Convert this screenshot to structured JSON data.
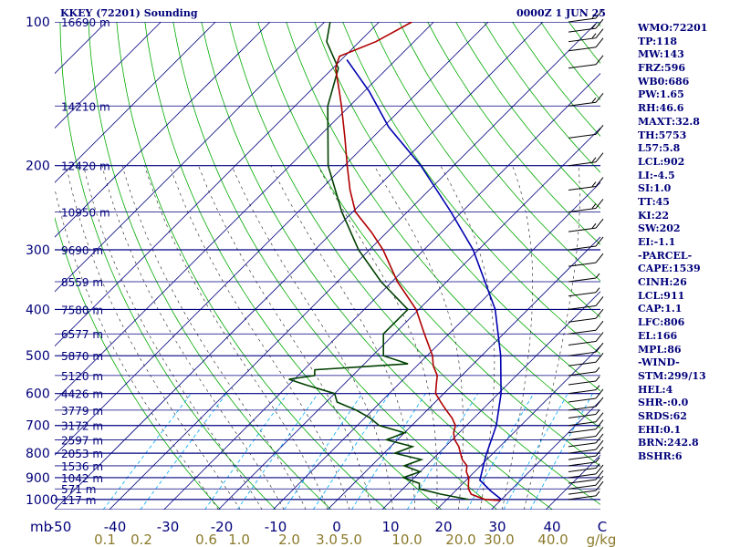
{
  "header": {
    "title": "KKEY (72201) Sounding",
    "valid_time": "0000Z  1 JUN 25"
  },
  "indices": [
    "WMO:72201",
    "TP:118",
    "MW:143",
    "FRZ:596",
    "WB0:686",
    "PW:1.65",
    "RH:46.6",
    "MAXT:32.8",
    "TH:5753",
    "L57:5.8",
    "LCL:902",
    "LI:-4.5",
    "SI:1.0",
    "TT:45",
    "KI:22",
    "SW:202",
    "EI:-1.1",
    "-PARCEL-",
    "CAPE:1539",
    "CINH:26",
    "LCL:911",
    "CAP:1.1",
    "LFC:806",
    "EL:166",
    "MPL:86",
    "-WIND-",
    "STM:299/13",
    "HEL:4",
    "SHR-:0.0",
    "SRDS:62",
    "EHI:0.1",
    "BRN:242.8",
    "BSHR:6"
  ],
  "colors": {
    "isobar": "#000080",
    "isotherm": "#000080",
    "dry_adiabat": "#00aa00",
    "moist_adiabat": "#1a1a1a",
    "mixing_ratio": "#00aaff",
    "temperature": "#b00000",
    "dewpoint": "#004000",
    "parcel": "#0000b0",
    "label": "#00007a",
    "mixing_label": "#8b7a2b"
  },
  "chart_data": {
    "type": "skew-t",
    "title": "KKEY (72201) Sounding",
    "pressure_levels": [
      100,
      200,
      300,
      400,
      500,
      600,
      700,
      800,
      900,
      1000
    ],
    "pressure_unit": "mb",
    "temperature_ticks": [
      -50,
      -40,
      -30,
      -20,
      -10,
      0,
      10,
      20,
      30,
      40
    ],
    "temperature_tick_labels": [
      "-50",
      "-40",
      "-30",
      "-20",
      "-10",
      "0",
      "10",
      "20",
      "30",
      "40",
      "C"
    ],
    "mixing_ratio_labels": [
      "0.1",
      "0.2",
      "0.6",
      "1.0",
      "2.0",
      "3.0",
      "5.0",
      "10.0",
      "20.0",
      "30.0",
      "40.0",
      "g/kg"
    ],
    "height_labels": [
      {
        "p": 100,
        "label": "16690 m"
      },
      {
        "p": 150,
        "label": "14210 m"
      },
      {
        "p": 200,
        "label": "12420 m"
      },
      {
        "p": 250,
        "label": "10950 m"
      },
      {
        "p": 300,
        "label": "9690 m"
      },
      {
        "p": 350,
        "label": "8559 m"
      },
      {
        "p": 400,
        "label": "7580 m"
      },
      {
        "p": 450,
        "label": "6577 m"
      },
      {
        "p": 500,
        "label": "5870 m"
      },
      {
        "p": 550,
        "label": "5120 m"
      },
      {
        "p": 600,
        "label": "4426 m"
      },
      {
        "p": 650,
        "label": "3779 m"
      },
      {
        "p": 700,
        "label": "3172 m"
      },
      {
        "p": 750,
        "label": "2597 m"
      },
      {
        "p": 800,
        "label": "2053 m"
      },
      {
        "p": 850,
        "label": "1536 m"
      },
      {
        "p": 900,
        "label": "1042 m"
      },
      {
        "p": 950,
        "label": "571 m"
      },
      {
        "p": 1000,
        "label": "117 m"
      }
    ],
    "temperature": [
      {
        "p": 1005,
        "t": 30
      },
      {
        "p": 1000,
        "t": 27
      },
      {
        "p": 975,
        "t": 23.5
      },
      {
        "p": 950,
        "t": 22
      },
      {
        "p": 925,
        "t": 21
      },
      {
        "p": 900,
        "t": 20
      },
      {
        "p": 875,
        "t": 18.5
      },
      {
        "p": 850,
        "t": 17.5
      },
      {
        "p": 825,
        "t": 15.5
      },
      {
        "p": 800,
        "t": 14
      },
      {
        "p": 775,
        "t": 12.5
      },
      {
        "p": 750,
        "t": 10.5
      },
      {
        "p": 725,
        "t": 9
      },
      {
        "p": 700,
        "t": 8
      },
      {
        "p": 675,
        "t": 6
      },
      {
        "p": 650,
        "t": 3.5
      },
      {
        "p": 625,
        "t": 1
      },
      {
        "p": 600,
        "t": -1.5
      },
      {
        "p": 575,
        "t": -3
      },
      {
        "p": 550,
        "t": -4.5
      },
      {
        "p": 525,
        "t": -7
      },
      {
        "p": 500,
        "t": -9
      },
      {
        "p": 450,
        "t": -14.5
      },
      {
        "p": 400,
        "t": -20.5
      },
      {
        "p": 350,
        "t": -29
      },
      {
        "p": 300,
        "t": -37.5
      },
      {
        "p": 275,
        "t": -43
      },
      {
        "p": 250,
        "t": -49.5
      },
      {
        "p": 225,
        "t": -54.5
      },
      {
        "p": 200,
        "t": -59.5
      },
      {
        "p": 175,
        "t": -65
      },
      {
        "p": 150,
        "t": -71.5
      },
      {
        "p": 140,
        "t": -74.5
      },
      {
        "p": 125,
        "t": -79.5
      },
      {
        "p": 118,
        "t": -81
      },
      {
        "p": 110,
        "t": -77
      },
      {
        "p": 100,
        "t": -74
      }
    ],
    "dewpoint": [
      {
        "p": 1000,
        "t": 24
      },
      {
        "p": 975,
        "t": 18
      },
      {
        "p": 950,
        "t": 13
      },
      {
        "p": 925,
        "t": 12
      },
      {
        "p": 900,
        "t": 8
      },
      {
        "p": 875,
        "t": 10
      },
      {
        "p": 850,
        "t": 6
      },
      {
        "p": 825,
        "t": 8
      },
      {
        "p": 800,
        "t": 2
      },
      {
        "p": 775,
        "t": 4
      },
      {
        "p": 750,
        "t": -2
      },
      {
        "p": 725,
        "t": 0
      },
      {
        "p": 700,
        "t": -6
      },
      {
        "p": 675,
        "t": -9
      },
      {
        "p": 650,
        "t": -13
      },
      {
        "p": 625,
        "t": -18
      },
      {
        "p": 600,
        "t": -20
      },
      {
        "p": 575,
        "t": -27
      },
      {
        "p": 560,
        "t": -31
      },
      {
        "p": 550,
        "t": -27
      },
      {
        "p": 535,
        "t": -28
      },
      {
        "p": 520,
        "t": -12
      },
      {
        "p": 500,
        "t": -18
      },
      {
        "p": 450,
        "t": -22
      },
      {
        "p": 400,
        "t": -22
      },
      {
        "p": 350,
        "t": -32
      },
      {
        "p": 300,
        "t": -42
      },
      {
        "p": 250,
        "t": -52
      },
      {
        "p": 200,
        "t": -63
      },
      {
        "p": 150,
        "t": -74
      },
      {
        "p": 125,
        "t": -79
      },
      {
        "p": 110,
        "t": -86
      },
      {
        "p": 100,
        "t": -89
      }
    ],
    "parcel": [
      {
        "p": 1000,
        "t": 30
      },
      {
        "p": 960,
        "t": 26.5
      },
      {
        "p": 911,
        "t": 22.5
      },
      {
        "p": 850,
        "t": 20.5
      },
      {
        "p": 806,
        "t": 19
      },
      {
        "p": 700,
        "t": 15.5
      },
      {
        "p": 600,
        "t": 10.5
      },
      {
        "p": 500,
        "t": 3.5
      },
      {
        "p": 400,
        "t": -6
      },
      {
        "p": 300,
        "t": -21
      },
      {
        "p": 250,
        "t": -32
      },
      {
        "p": 200,
        "t": -46
      },
      {
        "p": 166,
        "t": -59
      },
      {
        "p": 140,
        "t": -69
      },
      {
        "p": 120,
        "t": -79
      }
    ],
    "wind_barbs": [
      {
        "p": 1000,
        "spd": 5
      },
      {
        "p": 975,
        "spd": 10
      },
      {
        "p": 950,
        "spd": 10
      },
      {
        "p": 925,
        "spd": 10
      },
      {
        "p": 900,
        "spd": 10
      },
      {
        "p": 875,
        "spd": 5
      },
      {
        "p": 850,
        "spd": 5
      },
      {
        "p": 825,
        "spd": 10
      },
      {
        "p": 800,
        "spd": 10
      },
      {
        "p": 775,
        "spd": 10
      },
      {
        "p": 750,
        "spd": 10
      },
      {
        "p": 725,
        "spd": 10
      },
      {
        "p": 700,
        "spd": 10
      },
      {
        "p": 675,
        "spd": 5
      },
      {
        "p": 650,
        "spd": 10
      },
      {
        "p": 625,
        "spd": 10
      },
      {
        "p": 600,
        "spd": 5
      },
      {
        "p": 575,
        "spd": 5
      },
      {
        "p": 550,
        "spd": 5
      },
      {
        "p": 525,
        "spd": 10
      },
      {
        "p": 500,
        "spd": 10
      },
      {
        "p": 475,
        "spd": 10
      },
      {
        "p": 450,
        "spd": 10
      },
      {
        "p": 425,
        "spd": 10
      },
      {
        "p": 400,
        "spd": 10
      },
      {
        "p": 375,
        "spd": 5
      },
      {
        "p": 350,
        "spd": 5
      },
      {
        "p": 325,
        "spd": 10
      },
      {
        "p": 300,
        "spd": 10
      },
      {
        "p": 275,
        "spd": 15
      },
      {
        "p": 250,
        "spd": 15
      },
      {
        "p": 225,
        "spd": 15
      },
      {
        "p": 200,
        "spd": 15
      },
      {
        "p": 175,
        "spd": 10
      },
      {
        "p": 150,
        "spd": 15
      },
      {
        "p": 125,
        "spd": 10
      },
      {
        "p": 115,
        "spd": 10
      },
      {
        "p": 110,
        "spd": 15
      },
      {
        "p": 105,
        "spd": 15
      },
      {
        "p": 100,
        "spd": 15
      }
    ],
    "pressure_range": [
      100,
      1000
    ],
    "temperature_range_at_base": [
      -50,
      50
    ],
    "grid": true
  }
}
